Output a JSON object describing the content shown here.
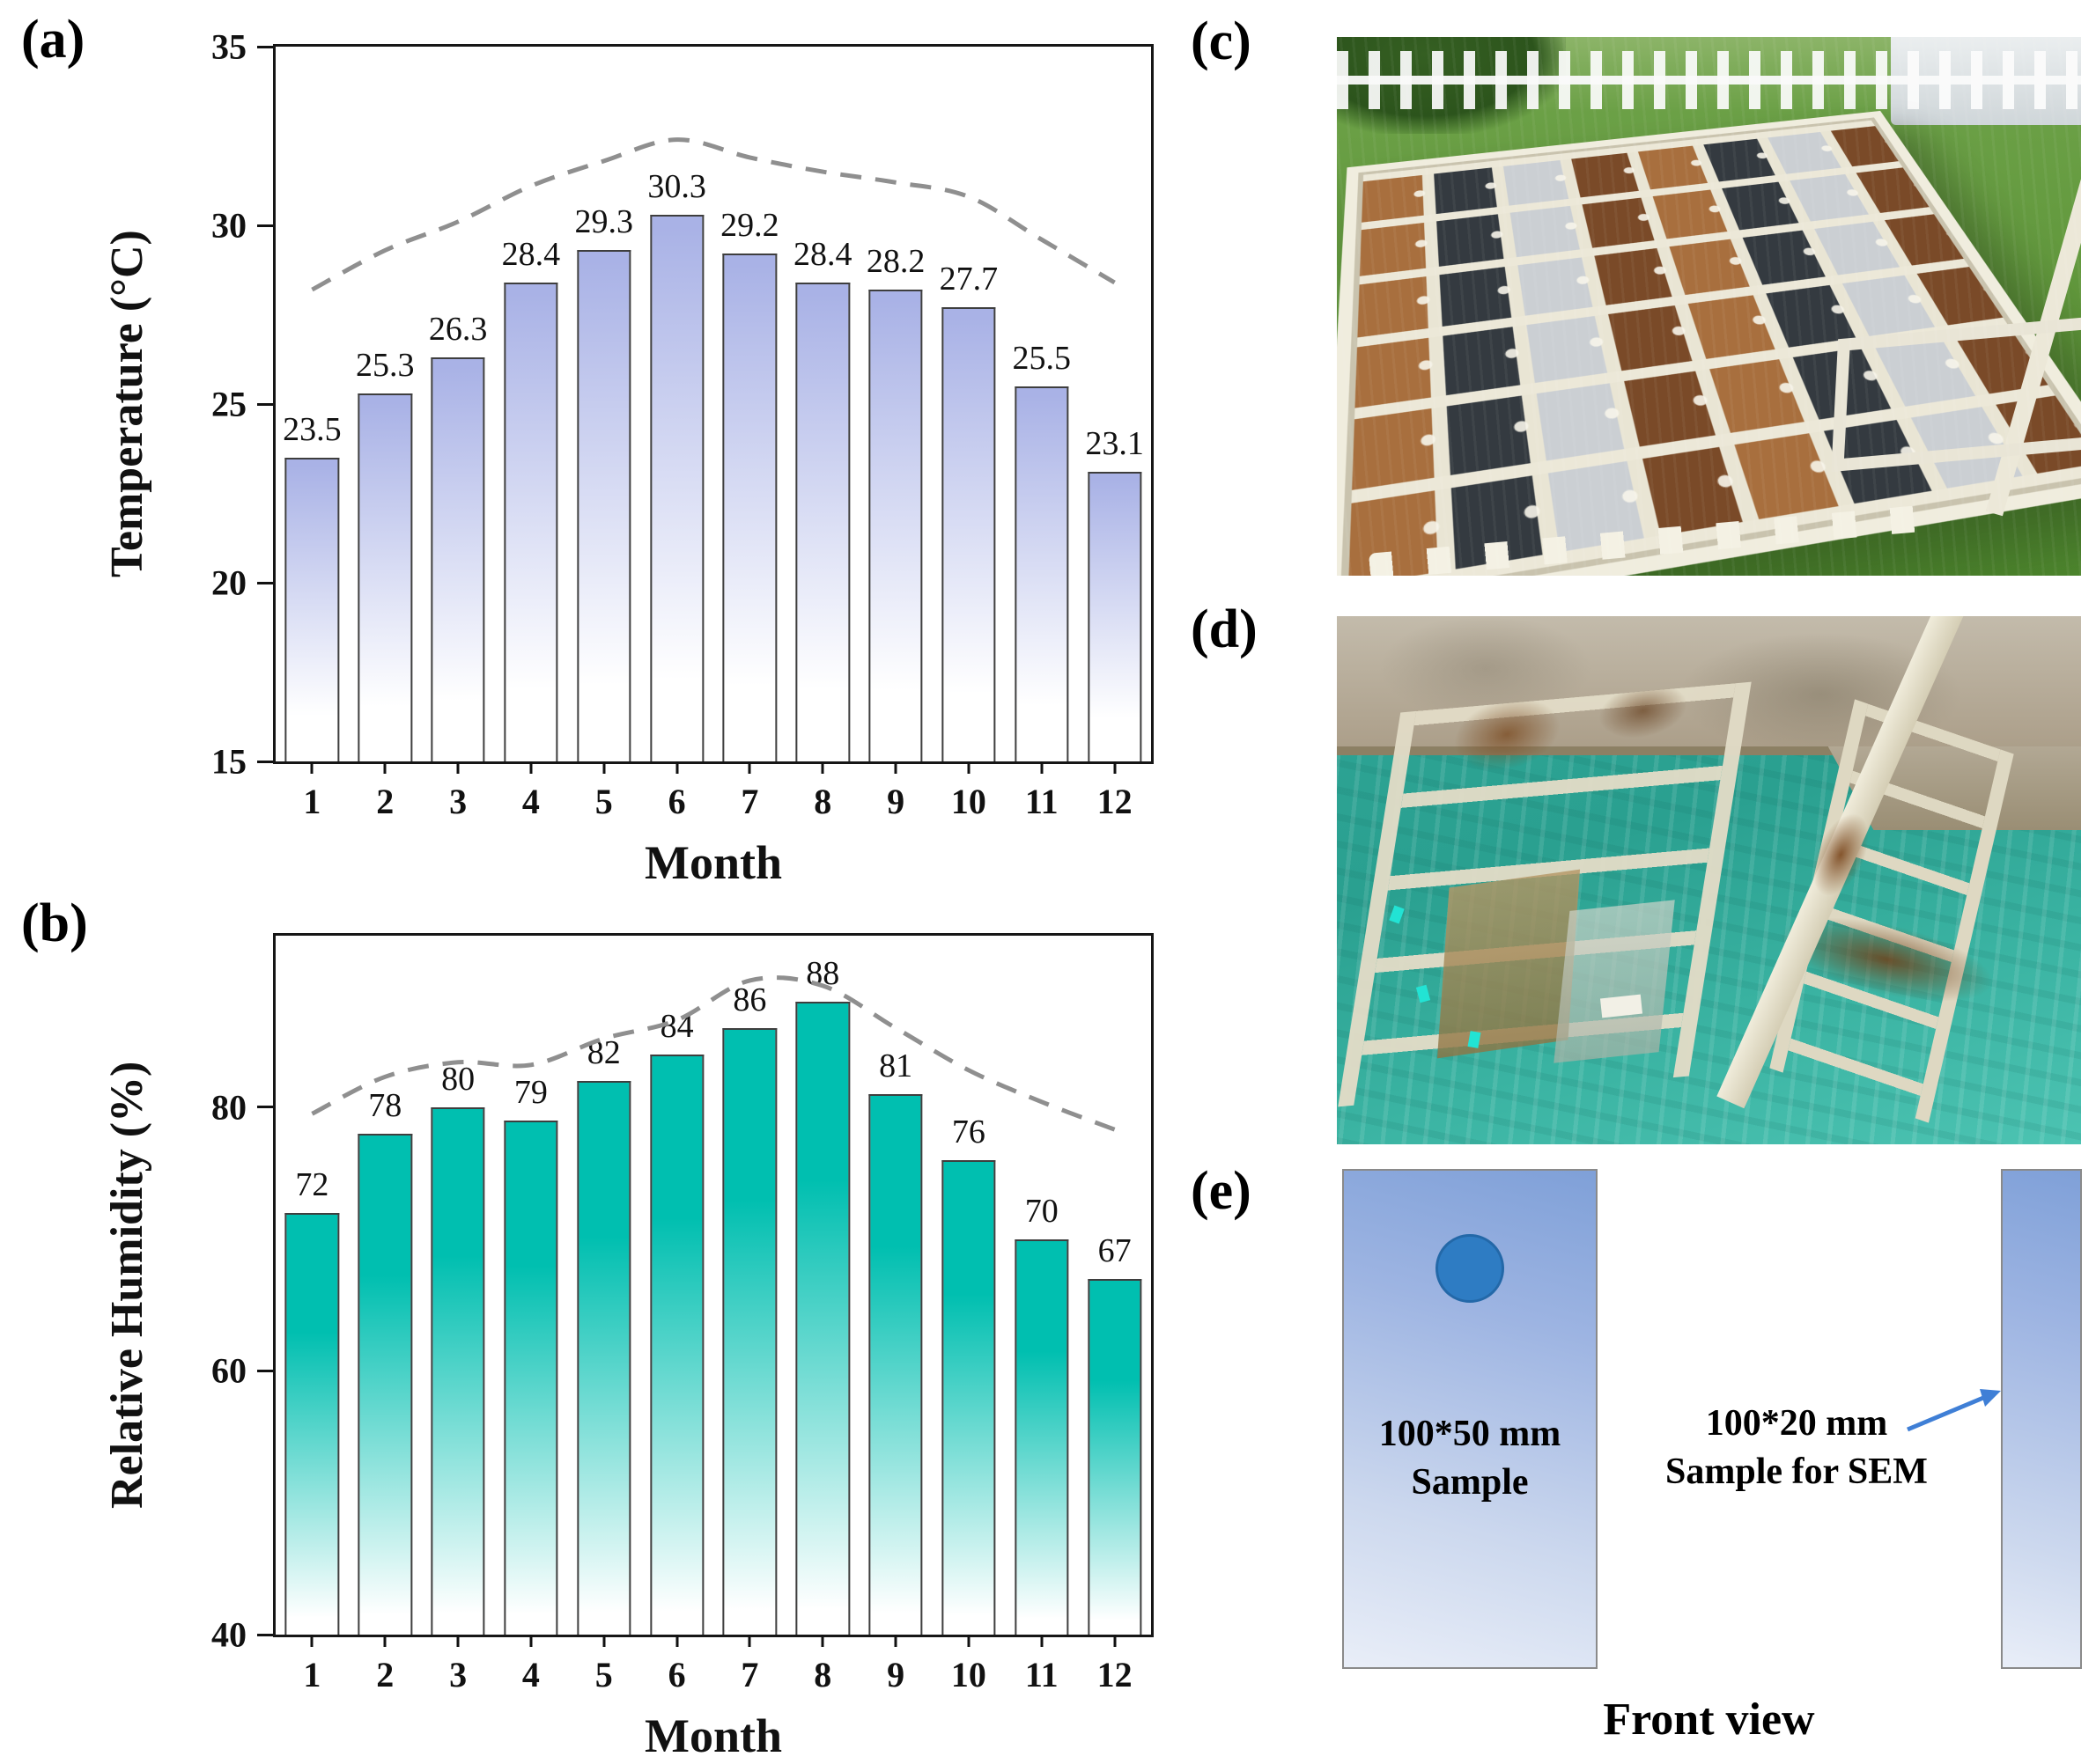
{
  "panel_labels": {
    "a": "(a)",
    "b": "(b)",
    "c": "(c)",
    "d": "(d)",
    "e": "(e)"
  },
  "chart_data": [
    {
      "id": "temperature-by-month",
      "type": "bar",
      "title": "",
      "xlabel": "Month",
      "ylabel": "Temperature (°C)",
      "categories": [
        "1",
        "2",
        "3",
        "4",
        "5",
        "6",
        "7",
        "8",
        "9",
        "10",
        "11",
        "12"
      ],
      "values": [
        23.5,
        25.3,
        26.3,
        28.4,
        29.3,
        30.3,
        29.2,
        28.4,
        28.2,
        27.7,
        25.5,
        23.1
      ],
      "value_labels": [
        "23.5",
        "25.3",
        "26.3",
        "28.4",
        "29.3",
        "30.3",
        "29.2",
        "28.4",
        "28.2",
        "27.7",
        "25.5",
        "23.1"
      ],
      "ylim": [
        15,
        35
      ],
      "yticks": [
        15,
        20,
        25,
        30,
        35
      ],
      "grid": false,
      "legend": false,
      "bar_color": "#a9b2e6",
      "bar_gradient_hold": "2%",
      "bar_gradient_fade": "85%",
      "trend_color": "#8f8f8f",
      "trend_dashed": [
        28.2,
        29.3,
        30.1,
        31.1,
        31.8,
        32.4,
        31.9,
        31.5,
        31.2,
        30.8,
        29.6,
        28.4
      ]
    },
    {
      "id": "relative-humidity-by-month",
      "type": "bar",
      "title": "",
      "xlabel": "Month",
      "ylabel": "Relative Humidity (%)",
      "categories": [
        "1",
        "2",
        "3",
        "4",
        "5",
        "6",
        "7",
        "8",
        "9",
        "10",
        "11",
        "12"
      ],
      "values": [
        72,
        78,
        80,
        79,
        82,
        84,
        86,
        88,
        81,
        76,
        70,
        67
      ],
      "value_labels": [
        "72",
        "78",
        "80",
        "79",
        "82",
        "84",
        "86",
        "88",
        "81",
        "76",
        "70",
        "67"
      ],
      "ylim": [
        40,
        93
      ],
      "yticks": [
        40,
        60,
        80
      ],
      "grid": false,
      "legend": false,
      "bar_color": "#00bfb0",
      "bar_gradient_hold": "28%",
      "bar_gradient_fade": "96%",
      "trend_color": "#8f8f8f",
      "trend_dashed": [
        79.5,
        82.3,
        83.4,
        83.2,
        85.2,
        86.6,
        89.6,
        89.2,
        86.0,
        82.8,
        80.4,
        78.3
      ]
    }
  ],
  "panel_e": {
    "large_label_line1": "100*50 mm",
    "large_label_line2": "Sample",
    "sem_label_line1": "100*20 mm",
    "sem_label_line2": "Sample for SEM",
    "caption": "Front view",
    "arrow_color": "#3f7fd6",
    "hole_color": "#2e7cc3",
    "sample_color_top": "#7fa0d8",
    "sample_color_bottom": "#e9eef8"
  }
}
